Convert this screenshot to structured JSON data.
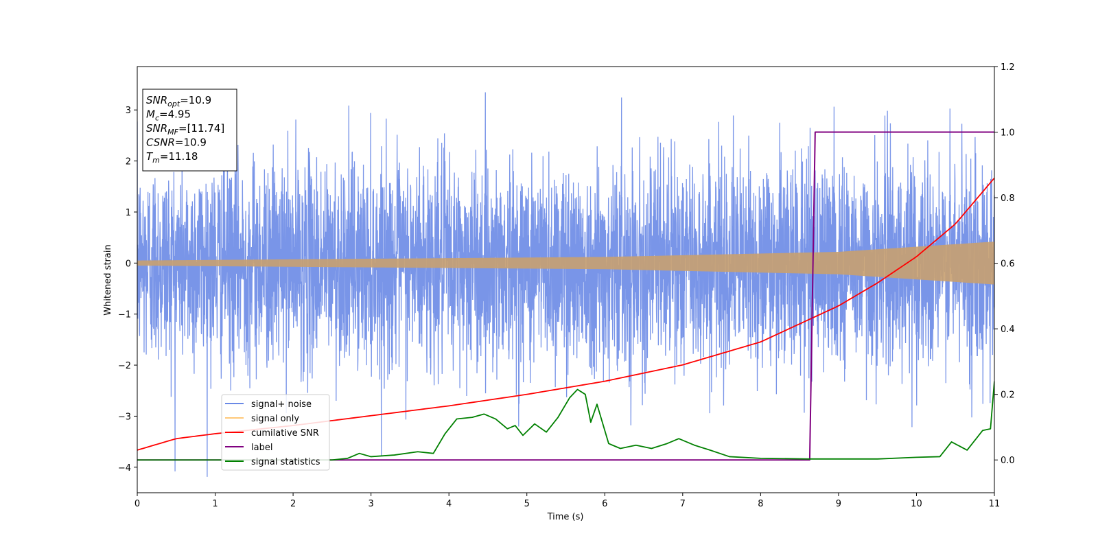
{
  "chart_data": {
    "type": "line",
    "xlabel": "Time (s)",
    "ylabel": "Whitened strain",
    "xlim": [
      0,
      11
    ],
    "ylim_left": [
      -4.5,
      3.85
    ],
    "ylim_right": [
      -0.1,
      1.2
    ],
    "x_ticks": [
      0,
      1,
      2,
      3,
      4,
      5,
      6,
      7,
      8,
      9,
      10,
      11
    ],
    "y_ticks_left": [
      -4,
      -3,
      -2,
      -1,
      0,
      1,
      2,
      3
    ],
    "y_ticks_left_labels": [
      "−4",
      "−3",
      "−2",
      "−1",
      "0",
      "1",
      "2",
      "3"
    ],
    "y_ticks_right": [
      0.0,
      0.2,
      0.4,
      0.6,
      0.8,
      1.0,
      1.2
    ],
    "y_ticks_right_labels": [
      "0.0",
      "0.2",
      "0.4",
      "0.6",
      "0.8",
      "1.0",
      "1.2"
    ],
    "grid": false,
    "legend_position": "lower-left",
    "series": [
      {
        "name": "signal+ noise",
        "axis": "left",
        "color": "#6a89e6",
        "description": "noisy whitened strain, amplitude roughly ±3",
        "rough_envelope": {
          "min": -4.2,
          "max": 3.5
        }
      },
      {
        "name": "signal only",
        "axis": "left",
        "color": "#ffc878",
        "amplitude_at": {
          "x": [
            0,
            6,
            9,
            11
          ],
          "y": [
            0.05,
            0.12,
            0.22,
            0.42
          ]
        }
      },
      {
        "name": "cumilative SNR",
        "axis": "right",
        "color": "#ff0000",
        "x": [
          0,
          0.5,
          1,
          2,
          3,
          4,
          5,
          6,
          7,
          8,
          9,
          9.5,
          10,
          10.5,
          11
        ],
        "y": [
          0.03,
          0.065,
          0.08,
          0.105,
          0.135,
          0.165,
          0.2,
          0.24,
          0.29,
          0.36,
          0.47,
          0.54,
          0.62,
          0.72,
          0.86
        ]
      },
      {
        "name": "label",
        "axis": "right",
        "color": "#800080",
        "x": [
          0,
          8.63,
          8.7,
          11
        ],
        "y": [
          0,
          0,
          1,
          1
        ]
      },
      {
        "name": "signal statistics",
        "axis": "right",
        "color": "#008000",
        "x": [
          0,
          2.5,
          2.7,
          2.85,
          3.0,
          3.3,
          3.6,
          3.8,
          3.95,
          4.1,
          4.3,
          4.45,
          4.6,
          4.75,
          4.85,
          4.95,
          5.1,
          5.25,
          5.4,
          5.55,
          5.65,
          5.75,
          5.82,
          5.9,
          6.05,
          6.2,
          6.4,
          6.6,
          6.8,
          6.95,
          7.15,
          7.35,
          7.6,
          8.0,
          8.6,
          9.5,
          10.0,
          10.3,
          10.45,
          10.65,
          10.85,
          10.95,
          11.0
        ],
        "y": [
          0.0,
          0.0,
          0.005,
          0.02,
          0.01,
          0.015,
          0.025,
          0.02,
          0.08,
          0.125,
          0.13,
          0.14,
          0.125,
          0.095,
          0.105,
          0.075,
          0.11,
          0.085,
          0.13,
          0.19,
          0.215,
          0.2,
          0.115,
          0.17,
          0.05,
          0.035,
          0.045,
          0.035,
          0.05,
          0.065,
          0.045,
          0.03,
          0.01,
          0.005,
          0.003,
          0.003,
          0.008,
          0.01,
          0.055,
          0.03,
          0.09,
          0.095,
          0.24
        ]
      }
    ]
  },
  "annotation": {
    "lines": [
      {
        "sym": "SNR",
        "sub": "opt",
        "rest": "=10.9"
      },
      {
        "sym": "M",
        "sub": "c",
        "rest": "=4.95"
      },
      {
        "sym": "SNR",
        "sub": "MF",
        "rest": "=[11.74]"
      },
      {
        "sym": "CSNR",
        "sub": "",
        "rest": "=10.9"
      },
      {
        "sym": "T",
        "sub": "m",
        "rest": "=11.18"
      }
    ]
  }
}
